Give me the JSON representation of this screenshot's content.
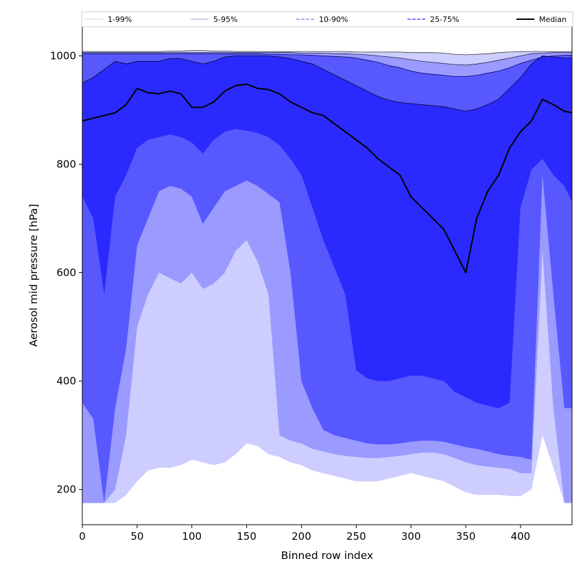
{
  "chart_data": {
    "type": "area",
    "title": "",
    "xlabel": "Binned row index",
    "ylabel": "Aerosol mid pressure [hPa]",
    "xlim": [
      0,
      447
    ],
    "ylim": [
      135,
      1055
    ],
    "xticks": [
      0,
      50,
      100,
      150,
      200,
      250,
      300,
      350,
      400
    ],
    "yticks": [
      200,
      400,
      600,
      800,
      1000
    ],
    "legend": {
      "placement": "top",
      "columns": 5
    },
    "colors": {
      "band_1_99": "#cdcdff",
      "band_5_95": "#9a9aff",
      "band_10_90": "#5858ff",
      "band_25_75": "#2a2aff",
      "median_line": "#000000"
    },
    "x": [
      0,
      10,
      20,
      30,
      40,
      50,
      60,
      70,
      80,
      90,
      100,
      110,
      120,
      130,
      140,
      150,
      160,
      170,
      180,
      190,
      200,
      210,
      220,
      230,
      240,
      250,
      260,
      270,
      280,
      290,
      300,
      310,
      320,
      330,
      340,
      350,
      360,
      370,
      380,
      390,
      400,
      410,
      420,
      430,
      440,
      447
    ],
    "series": [
      {
        "name": "1-99%",
        "key": "p1_99",
        "lower": [
          175,
          175,
          175,
          175,
          190,
          215,
          235,
          240,
          240,
          245,
          255,
          250,
          245,
          250,
          265,
          285,
          280,
          265,
          260,
          250,
          245,
          235,
          230,
          225,
          220,
          215,
          215,
          215,
          220,
          225,
          230,
          225,
          220,
          215,
          205,
          195,
          190,
          190,
          190,
          188,
          188,
          200,
          300,
          240,
          175,
          175
        ],
        "upper": [
          1008,
          1008,
          1008,
          1008,
          1008,
          1008,
          1008,
          1008,
          1009,
          1009,
          1010,
          1010,
          1009,
          1009,
          1008,
          1008,
          1008,
          1008,
          1008,
          1008,
          1008,
          1008,
          1008,
          1008,
          1008,
          1007,
          1007,
          1007,
          1007,
          1007,
          1006,
          1006,
          1006,
          1005,
          1003,
          1002,
          1003,
          1004,
          1006,
          1007,
          1008,
          1008,
          1008,
          1008,
          1008,
          1008
        ]
      },
      {
        "name": "5-95%",
        "key": "p5_95",
        "lower": [
          175,
          175,
          175,
          200,
          300,
          500,
          560,
          600,
          590,
          580,
          600,
          570,
          580,
          600,
          640,
          660,
          620,
          560,
          300,
          290,
          285,
          275,
          270,
          265,
          262,
          260,
          258,
          258,
          260,
          262,
          265,
          268,
          268,
          265,
          258,
          250,
          245,
          242,
          240,
          238,
          230,
          230,
          640,
          350,
          175,
          175
        ],
        "upper": [
          1006,
          1006,
          1006,
          1006,
          1006,
          1006,
          1006,
          1006,
          1006,
          1006,
          1006,
          1006,
          1006,
          1006,
          1006,
          1006,
          1006,
          1006,
          1006,
          1006,
          1005,
          1005,
          1005,
          1004,
          1004,
          1003,
          1002,
          1000,
          998,
          996,
          993,
          990,
          988,
          986,
          984,
          983,
          985,
          988,
          992,
          996,
          1000,
          1004,
          1005,
          1006,
          1006,
          1006
        ]
      },
      {
        "name": "10-90%",
        "key": "p10_90",
        "lower": [
          360,
          330,
          175,
          350,
          460,
          650,
          700,
          750,
          760,
          755,
          740,
          690,
          720,
          750,
          760,
          770,
          760,
          745,
          730,
          600,
          400,
          350,
          310,
          300,
          295,
          290,
          285,
          283,
          283,
          285,
          288,
          290,
          290,
          288,
          283,
          278,
          275,
          270,
          265,
          262,
          260,
          255,
          780,
          560,
          350,
          350
        ],
        "upper": [
          1004,
          1004,
          1004,
          1004,
          1004,
          1004,
          1004,
          1004,
          1004,
          1004,
          1004,
          1004,
          1004,
          1004,
          1004,
          1004,
          1004,
          1003,
          1003,
          1002,
          1002,
          1001,
          1000,
          999,
          998,
          996,
          992,
          988,
          982,
          978,
          972,
          968,
          966,
          964,
          962,
          962,
          964,
          968,
          972,
          978,
          986,
          992,
          998,
          1000,
          1001,
          1001
        ]
      },
      {
        "name": "25-75%",
        "key": "p25_75",
        "lower": [
          740,
          700,
          560,
          740,
          780,
          830,
          845,
          850,
          855,
          850,
          840,
          820,
          845,
          860,
          865,
          862,
          858,
          850,
          835,
          810,
          780,
          720,
          660,
          610,
          560,
          420,
          405,
          400,
          400,
          405,
          410,
          410,
          405,
          400,
          380,
          370,
          360,
          355,
          350,
          360,
          720,
          790,
          810,
          780,
          760,
          730
        ],
        "upper": [
          950,
          960,
          975,
          990,
          985,
          990,
          990,
          990,
          995,
          995,
          990,
          985,
          990,
          998,
          1000,
          1000,
          1000,
          1000,
          998,
          995,
          990,
          985,
          975,
          965,
          955,
          945,
          935,
          925,
          918,
          914,
          912,
          910,
          908,
          906,
          902,
          898,
          902,
          910,
          920,
          940,
          960,
          985,
          1000,
          998,
          996,
          996
        ]
      },
      {
        "name": "Median",
        "key": "median",
        "values": [
          880,
          885,
          890,
          895,
          910,
          940,
          932,
          930,
          935,
          930,
          905,
          905,
          915,
          935,
          945,
          948,
          940,
          938,
          930,
          915,
          905,
          895,
          890,
          875,
          860,
          845,
          830,
          810,
          795,
          780,
          740,
          720,
          700,
          680,
          640,
          600,
          700,
          750,
          780,
          830,
          860,
          880,
          920,
          910,
          898,
          895
        ]
      }
    ]
  }
}
